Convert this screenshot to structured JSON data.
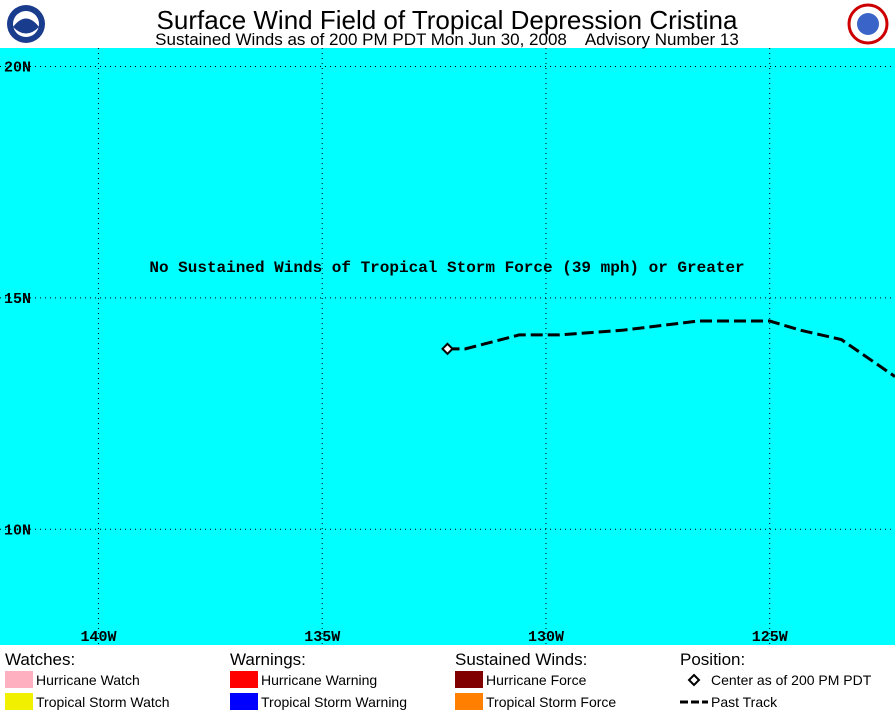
{
  "header": {
    "title": "Surface Wind Field of Tropical Depression Cristina",
    "subtitle": "Sustained Winds as of 200 PM PDT Mon Jun 30, 2008    Advisory Number 13"
  },
  "map": {
    "note": "No Sustained Winds of Tropical Storm Force (39 mph) or Greater",
    "xlim": [
      -142.2,
      -122.2
    ],
    "ylim": [
      7.5,
      20.4
    ],
    "xticks": [
      {
        "value": -140,
        "label": "140W"
      },
      {
        "value": -135,
        "label": "135W"
      },
      {
        "value": -130,
        "label": "130W"
      },
      {
        "value": -125,
        "label": "125W"
      }
    ],
    "yticks": [
      {
        "value": 20,
        "label": "20N"
      },
      {
        "value": 15,
        "label": "15N"
      },
      {
        "value": 10,
        "label": "10N"
      }
    ],
    "grid": true,
    "center": {
      "lon": -132.2,
      "lat": 13.9
    },
    "track": {
      "lon": [
        -132.2,
        -131.8,
        -130.6,
        -129.7,
        -128.3,
        -126.6,
        -125.0,
        -124.3,
        -123.4,
        -122.8,
        -122.2
      ],
      "lat": [
        13.9,
        13.9,
        14.2,
        14.2,
        14.3,
        14.5,
        14.5,
        14.3,
        14.1,
        13.7,
        13.3
      ]
    }
  },
  "legend": {
    "watches": {
      "title": "Watches:",
      "items": [
        {
          "label": "Hurricane Watch",
          "color": "#ffb0c0"
        },
        {
          "label": "Tropical Storm Watch",
          "color": "#f0f000"
        }
      ]
    },
    "warnings": {
      "title": "Warnings:",
      "items": [
        {
          "label": "Hurricane Warning",
          "color": "#ff0000"
        },
        {
          "label": "Tropical Storm Warning",
          "color": "#0000ff"
        }
      ]
    },
    "winds": {
      "title": "Sustained Winds:",
      "items": [
        {
          "label": "Hurricane Force",
          "color": "#800000"
        },
        {
          "label": "Tropical Storm Force",
          "color": "#ff8000"
        }
      ]
    },
    "position": {
      "title": "Position:",
      "items": [
        {
          "label": "Center as of 200 PM PDT"
        },
        {
          "label": "Past Track"
        }
      ]
    }
  }
}
